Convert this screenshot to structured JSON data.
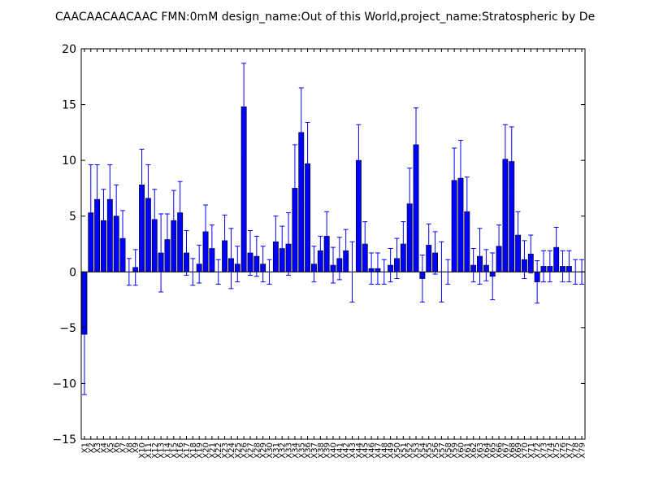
{
  "chart_data": {
    "type": "bar",
    "title": "CAACAACAACAAC  FMN:0mM  design_name:Out of this World,project_name:Stratospheric by De",
    "xlabel": "",
    "ylabel": "",
    "ylim": [
      -15,
      20
    ],
    "yticks": [
      -15,
      -10,
      -5,
      0,
      5,
      10,
      15,
      20
    ],
    "grid": false,
    "colors": {
      "bar": "#0000ff",
      "error": "#0000ff",
      "frame": "#000000",
      "background": "#ffffff"
    },
    "categories": [
      "X1",
      "X2",
      "X3",
      "X4",
      "X5",
      "X6",
      "X7",
      "X8",
      "X9",
      "X10",
      "X11",
      "X12",
      "X13",
      "X14",
      "X15",
      "X16",
      "X17",
      "X18",
      "X19",
      "X20",
      "X21",
      "X22",
      "X23",
      "X24",
      "X25",
      "X26",
      "X27",
      "X28",
      "X29",
      "X30",
      "X31",
      "X32",
      "X33",
      "X34",
      "X35",
      "X36",
      "X37",
      "X38",
      "X39",
      "X40",
      "X41",
      "X42",
      "X43",
      "X44",
      "X45",
      "X46",
      "X47",
      "X48",
      "X49",
      "X50",
      "X51",
      "X52",
      "X53",
      "X54",
      "X55",
      "X56",
      "X57",
      "X58",
      "X59",
      "X60",
      "X61",
      "X62",
      "X63",
      "X64",
      "X65",
      "X66",
      "X67",
      "X68",
      "X69",
      "X70",
      "X71",
      "X72",
      "X73",
      "X74",
      "X75",
      "X76",
      "X77",
      "X78",
      "X79"
    ],
    "values": [
      -5.6,
      5.3,
      6.5,
      4.6,
      6.5,
      5.0,
      3.0,
      0.0,
      0.4,
      7.8,
      6.6,
      4.7,
      1.7,
      2.9,
      4.6,
      5.3,
      1.7,
      0.0,
      0.7,
      3.6,
      2.1,
      0.0,
      2.8,
      1.2,
      0.7,
      14.8,
      1.7,
      1.4,
      0.7,
      0.0,
      2.7,
      2.1,
      2.5,
      7.5,
      12.5,
      9.7,
      0.7,
      1.9,
      3.2,
      0.6,
      1.2,
      1.9,
      0.0,
      10.0,
      2.5,
      0.3,
      0.3,
      0.0,
      0.6,
      1.2,
      2.5,
      6.1,
      11.4,
      -0.6,
      2.4,
      1.7,
      0.0,
      0.0,
      8.2,
      8.4,
      5.4,
      0.6,
      1.4,
      0.6,
      -0.4,
      2.3,
      10.1,
      9.9,
      3.3,
      1.1,
      1.6,
      -0.9,
      0.5,
      0.5,
      2.2,
      0.5,
      0.5,
      0.0,
      0.0
    ],
    "errors": [
      5.4,
      4.3,
      3.1,
      2.8,
      3.1,
      2.8,
      2.5,
      1.2,
      1.6,
      3.2,
      3.0,
      2.7,
      3.5,
      2.3,
      2.7,
      2.8,
      2.0,
      1.2,
      1.7,
      2.4,
      2.1,
      1.1,
      2.3,
      2.7,
      1.6,
      3.9,
      2.0,
      1.8,
      1.6,
      1.1,
      2.3,
      2.0,
      2.8,
      3.9,
      4.0,
      3.7,
      1.6,
      1.3,
      2.2,
      1.6,
      1.9,
      1.9,
      2.7,
      3.2,
      2.0,
      1.4,
      1.4,
      1.1,
      1.5,
      1.8,
      2.0,
      3.2,
      3.3,
      2.1,
      1.9,
      1.9,
      2.7,
      1.1,
      2.9,
      3.4,
      3.1,
      1.5,
      2.5,
      1.4,
      2.1,
      1.9,
      3.1,
      3.1,
      2.1,
      1.7,
      1.7,
      1.9,
      1.4,
      1.4,
      1.8,
      1.4,
      1.4,
      1.1,
      1.1
    ]
  }
}
